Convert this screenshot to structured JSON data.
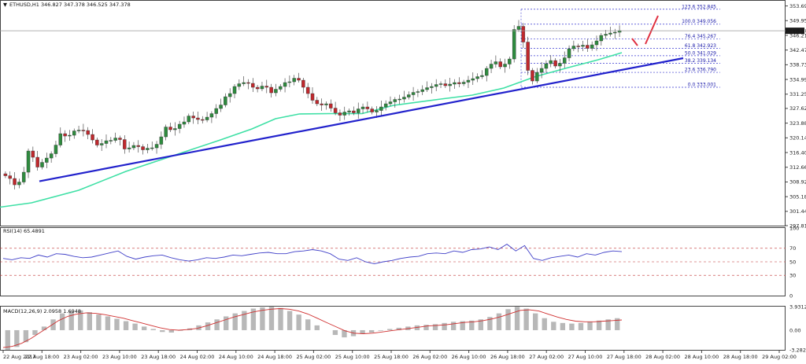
{
  "header": {
    "symbol_line": "ETHUSD,H1  346.827 347.378 346.525 347.378",
    "rsi_label": "RSI(14) 65.4891",
    "macd_label": "MACD(12,26,9) 2.0958 1.6948"
  },
  "colors": {
    "bull": "#2e8b3e",
    "bear": "#c0282d",
    "trendline": "#2222cc",
    "sma": "#3ee0a5",
    "fib": "#3a3ad0",
    "rsi": "#4040c8",
    "macd_signal": "#d03030",
    "macd_hist": "#b8b8b8",
    "arrow": "#e03040"
  },
  "chart_data": [
    {
      "type": "line",
      "panel": "price",
      "symbol": "ETHUSD",
      "timeframe": "H1",
      "ohlc": {
        "open": 346.827,
        "high": 347.378,
        "low": 346.525,
        "close": 347.378
      },
      "current_price_label": "347.378",
      "y_ticks": [
        "353.690",
        "349.950",
        "346.210",
        "342.470",
        "338.730",
        "334.990",
        "331.250",
        "327.620",
        "323.880",
        "320.140",
        "316.400",
        "312.660",
        "308.920",
        "305.180",
        "301.440",
        "297.810"
      ],
      "ylim": [
        297.81,
        355.0
      ],
      "x_ticks": [
        "22 Aug 2017",
        "22 Aug 18:00",
        "23 Aug 02:00",
        "23 Aug 10:00",
        "23 Aug 18:00",
        "24 Aug 02:00",
        "24 Aug 10:00",
        "24 Aug 18:00",
        "25 Aug 02:00",
        "25 Aug 10:00",
        "25 Aug 18:00",
        "26 Aug 02:00",
        "26 Aug 10:00",
        "26 Aug 18:00",
        "27 Aug 02:00",
        "27 Aug 10:00",
        "27 Aug 18:00",
        "28 Aug 02:00",
        "28 Aug 10:00",
        "28 Aug 18:00",
        "29 Aug 02:00"
      ],
      "fibonacci": [
        {
          "label": "123.6  352.845",
          "value": 352.845
        },
        {
          "label": "100.0  349.056",
          "value": 349.056
        },
        {
          "label": "76.4  345.267",
          "value": 345.267
        },
        {
          "label": "61.8  342.923",
          "value": 342.923
        },
        {
          "label": "50.0  341.029",
          "value": 341.029
        },
        {
          "label": "38.2  339.134",
          "value": 339.134
        },
        {
          "label": "23.6  336.790",
          "value": 336.79
        },
        {
          "label": "0.0  333.001",
          "value": 333.001
        }
      ],
      "trendline": {
        "from": [
          "22 Aug 18:00",
          309.1
        ],
        "to": [
          "29 Aug 02:00",
          340.4
        ]
      },
      "sma_path": [
        [
          0,
          302.5
        ],
        [
          40,
          303.6
        ],
        [
          100,
          306.8
        ],
        [
          160,
          311.6
        ],
        [
          220,
          315.6
        ],
        [
          280,
          319.6
        ],
        [
          320,
          322.4
        ],
        [
          350,
          325.0
        ],
        [
          380,
          326.2
        ],
        [
          420,
          326.3
        ],
        [
          460,
          326.3
        ],
        [
          500,
          328.4
        ],
        [
          560,
          330.0
        ],
        [
          600,
          331.0
        ],
        [
          640,
          332.8
        ],
        [
          680,
          335.7
        ],
        [
          720,
          337.9
        ],
        [
          760,
          340.0
        ],
        [
          790,
          341.8
        ]
      ],
      "candles_close": [
        310.5,
        309.8,
        308.2,
        308.9,
        311.4,
        316.8,
        315.2,
        312.7,
        313.9,
        315.0,
        316.1,
        318.3,
        321.2,
        320.6,
        320.8,
        321.9,
        322.1,
        322.0,
        321.0,
        319.6,
        318.3,
        318.7,
        319.4,
        319.5,
        320.1,
        319.7,
        317.3,
        317.6,
        318.2,
        317.9,
        317.1,
        317.5,
        317.6,
        318.5,
        320.4,
        322.9,
        322.2,
        322.5,
        323.6,
        324.2,
        325.7,
        325.2,
        324.8,
        324.7,
        325.4,
        326.3,
        327.6,
        328.5,
        330.6,
        331.4,
        333.2,
        333.9,
        334.2,
        334.0,
        333.0,
        332.6,
        333.3,
        333.0,
        331.6,
        332.5,
        333.2,
        334.2,
        334.4,
        335.3,
        334.8,
        333.0,
        331.4,
        329.7,
        328.8,
        328.5,
        328.8,
        327.7,
        326.5,
        325.9,
        326.7,
        327.0,
        326.5,
        327.5,
        328.0,
        327.5,
        326.7,
        327.1,
        328.0,
        328.8,
        329.3,
        329.9,
        330.0,
        330.5,
        331.1,
        331.7,
        331.9,
        332.4,
        332.9,
        333.2,
        333.7,
        333.9,
        333.4,
        333.8,
        334.2,
        333.9,
        334.3,
        334.8,
        335.2,
        335.7,
        336.0,
        337.8,
        338.9,
        339.5,
        338.2,
        338.9,
        340.2,
        347.7,
        348.5,
        344.5,
        337.3,
        334.6,
        336.8,
        337.8,
        339.0,
        339.8,
        338.4,
        339.1,
        340.5,
        342.8,
        343.5,
        343.4,
        343.7,
        342.9,
        343.8,
        344.8,
        346.2,
        346.5,
        346.8,
        347.0,
        347.4
      ],
      "annotations": [
        "red zig-zag projection arrows above last candles"
      ]
    },
    {
      "type": "line",
      "panel": "rsi",
      "name": "RSI(14)",
      "value": 65.4891,
      "y_ticks": [
        "100",
        "70",
        "50",
        "30",
        "0"
      ],
      "ylim": [
        0,
        100
      ],
      "levels": [
        70,
        50,
        30
      ],
      "values": [
        55,
        53,
        56,
        55,
        60,
        57,
        62,
        61,
        58,
        56,
        57,
        60,
        63,
        66,
        58,
        54,
        57,
        59,
        60,
        56,
        53,
        51,
        53,
        56,
        55,
        57,
        60,
        59,
        61,
        63,
        64,
        62,
        62,
        65,
        66,
        68,
        66,
        62,
        54,
        52,
        56,
        50,
        47,
        50,
        52,
        55,
        57,
        58,
        62,
        63,
        62,
        66,
        64,
        68,
        69,
        72,
        68,
        76,
        66,
        74,
        55,
        52,
        56,
        58,
        60,
        57,
        62,
        60,
        64,
        66,
        65
      ]
    },
    {
      "type": "bar",
      "panel": "macd",
      "name": "MACD(12,26,9)",
      "values_shown": [
        2.0958,
        1.6948
      ],
      "y_ticks": [
        "3.9312",
        "0.00",
        "-3.282"
      ],
      "ylim": [
        -3.282,
        3.9312
      ],
      "histogram": [
        -3.3,
        -2.8,
        -2.0,
        -0.8,
        0.6,
        1.8,
        2.8,
        3.2,
        3.3,
        3.0,
        2.6,
        2.3,
        1.9,
        1.5,
        1.1,
        0.6,
        0.2,
        -0.3,
        -0.4,
        -0.1,
        0.3,
        0.8,
        1.3,
        1.8,
        2.3,
        2.8,
        3.2,
        3.6,
        3.8,
        3.9,
        3.7,
        3.2,
        2.6,
        1.8,
        0.8,
        0.0,
        -0.8,
        -1.2,
        -1.0,
        -0.6,
        -0.4,
        -0.1,
        0.2,
        0.4,
        0.6,
        0.8,
        0.9,
        1.0,
        1.2,
        1.4,
        1.5,
        1.6,
        1.8,
        2.2,
        2.8,
        3.5,
        3.9,
        3.6,
        2.8,
        2.0,
        1.4,
        1.2,
        1.1,
        1.2,
        1.4,
        1.6,
        1.8,
        2.0
      ],
      "signal": [
        -2.9,
        -2.7,
        -2.2,
        -1.4,
        -0.4,
        0.6,
        1.6,
        2.3,
        2.7,
        2.9,
        2.8,
        2.6,
        2.3,
        2.0,
        1.6,
        1.2,
        0.8,
        0.4,
        0.1,
        0.0,
        0.1,
        0.3,
        0.7,
        1.2,
        1.7,
        2.2,
        2.6,
        3.0,
        3.3,
        3.5,
        3.6,
        3.5,
        3.2,
        2.7,
        2.0,
        1.3,
        0.6,
        -0.1,
        -0.5,
        -0.6,
        -0.5,
        -0.3,
        -0.1,
        0.1,
        0.3,
        0.5,
        0.7,
        0.8,
        0.9,
        1.1,
        1.3,
        1.4,
        1.6,
        1.9,
        2.3,
        2.8,
        3.3,
        3.4,
        3.2,
        2.7,
        2.2,
        1.8,
        1.5,
        1.4,
        1.4,
        1.5,
        1.6,
        1.7
      ]
    }
  ]
}
